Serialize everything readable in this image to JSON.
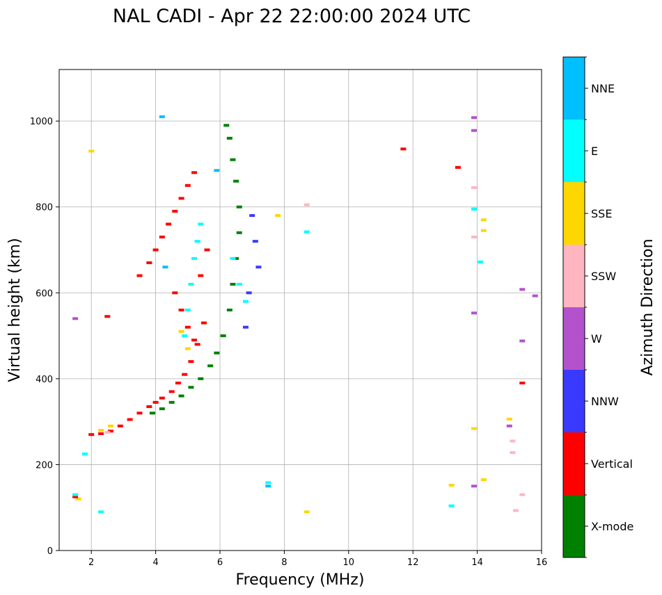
{
  "chart_data": {
    "type": "scatter",
    "title": "NAL CADI - Apr 22 22:00:00 2024 UTC",
    "xlabel": "Frequency (MHz)",
    "ylabel": "Virtual height (km)",
    "xlim": [
      1,
      16
    ],
    "ylim": [
      0,
      1120
    ],
    "xticks": [
      2,
      4,
      6,
      8,
      10,
      12,
      14,
      16
    ],
    "yticks": [
      0,
      200,
      400,
      600,
      800,
      1000
    ],
    "grid": true,
    "colorbar": {
      "title": "Azimuth Direction",
      "categories": [
        {
          "name": "X-mode",
          "color": "#008000"
        },
        {
          "name": "Vertical",
          "color": "#ff0000"
        },
        {
          "name": "NNW",
          "color": "#3a3aff"
        },
        {
          "name": "W",
          "color": "#b452cd"
        },
        {
          "name": "SSW",
          "color": "#ffb6c1"
        },
        {
          "name": "SSE",
          "color": "#ffd700"
        },
        {
          "name": "E",
          "color": "#00ffff"
        },
        {
          "name": "NNE",
          "color": "#00bfff"
        }
      ]
    },
    "traces": [
      {
        "name": "Vertical",
        "x": [
          2.0,
          2.3,
          2.6,
          2.9,
          3.2,
          3.5,
          3.8,
          4.0,
          4.2,
          4.5,
          4.7,
          4.9,
          5.1,
          5.3,
          5.5
        ],
        "y": [
          270,
          272,
          278,
          290,
          305,
          320,
          335,
          345,
          355,
          370,
          390,
          410,
          440,
          480,
          530
        ]
      },
      {
        "name": "X-mode",
        "x": [
          3.9,
          4.2,
          4.5,
          4.8,
          5.1,
          5.4,
          5.7,
          5.9,
          6.1
        ],
        "y": [
          320,
          330,
          345,
          360,
          380,
          400,
          430,
          460,
          500
        ]
      },
      {
        "name": "X-mode",
        "x": [
          6.3,
          6.4,
          6.5,
          6.6,
          6.6,
          6.5,
          6.4,
          6.3,
          6.2
        ],
        "y": [
          560,
          620,
          680,
          740,
          800,
          860,
          910,
          960,
          990
        ]
      },
      {
        "name": "Vertical",
        "x": [
          3.5,
          3.8,
          4.0,
          4.2,
          4.4,
          4.6,
          4.8,
          5.0,
          5.2
        ],
        "y": [
          640,
          670,
          700,
          730,
          760,
          790,
          820,
          850,
          880
        ]
      },
      {
        "name": "Vertical",
        "x": [
          4.6,
          4.8,
          5.0,
          5.2,
          5.4,
          5.6
        ],
        "y": [
          600,
          560,
          520,
          490,
          640,
          700
        ]
      },
      {
        "name": "E",
        "x": [
          4.9,
          5.0,
          5.1,
          5.2,
          5.3,
          5.4,
          6.4,
          6.6,
          6.8
        ],
        "y": [
          500,
          560,
          620,
          680,
          720,
          760,
          680,
          620,
          580
        ]
      },
      {
        "name": "NNW",
        "x": [
          7.0,
          7.1,
          7.2,
          6.9,
          6.8
        ],
        "y": [
          780,
          720,
          660,
          600,
          520
        ]
      },
      {
        "name": "SSE",
        "x": [
          1.6,
          2.0,
          2.3,
          2.6,
          4.8,
          5.0,
          7.8,
          8.7,
          13.2,
          13.9,
          14.2,
          14.2,
          14.2,
          15.0
        ],
        "y": [
          120,
          930,
          280,
          290,
          510,
          470,
          780,
          90,
          152,
          284,
          165,
          745,
          770,
          306
        ]
      },
      {
        "name": "SSW",
        "x": [
          2.5,
          8.7,
          13.9,
          13.9,
          15.1,
          15.1,
          15.4,
          15.2
        ],
        "y": [
          275,
          805,
          845,
          730,
          255,
          228,
          130,
          93
        ]
      },
      {
        "name": "W",
        "x": [
          1.5,
          13.9,
          13.9,
          13.9,
          13.9,
          15.0,
          15.4,
          15.4,
          15.8
        ],
        "y": [
          540,
          1008,
          978,
          553,
          150,
          290,
          488,
          608,
          593
        ]
      },
      {
        "name": "Vertical",
        "x": [
          1.5,
          2.5,
          11.7,
          13.4,
          15.4
        ],
        "y": [
          125,
          545,
          935,
          892,
          390
        ]
      },
      {
        "name": "NNE",
        "x": [
          4.2,
          4.3,
          5.9,
          7.5,
          13.9
        ],
        "y": [
          1010,
          660,
          885,
          150,
          795
        ]
      },
      {
        "name": "E",
        "x": [
          1.5,
          1.8,
          2.3,
          7.5,
          8.7,
          13.2,
          14.1,
          13.9
        ],
        "y": [
          130,
          225,
          90,
          158,
          742,
          104,
          672,
          795
        ]
      }
    ]
  }
}
